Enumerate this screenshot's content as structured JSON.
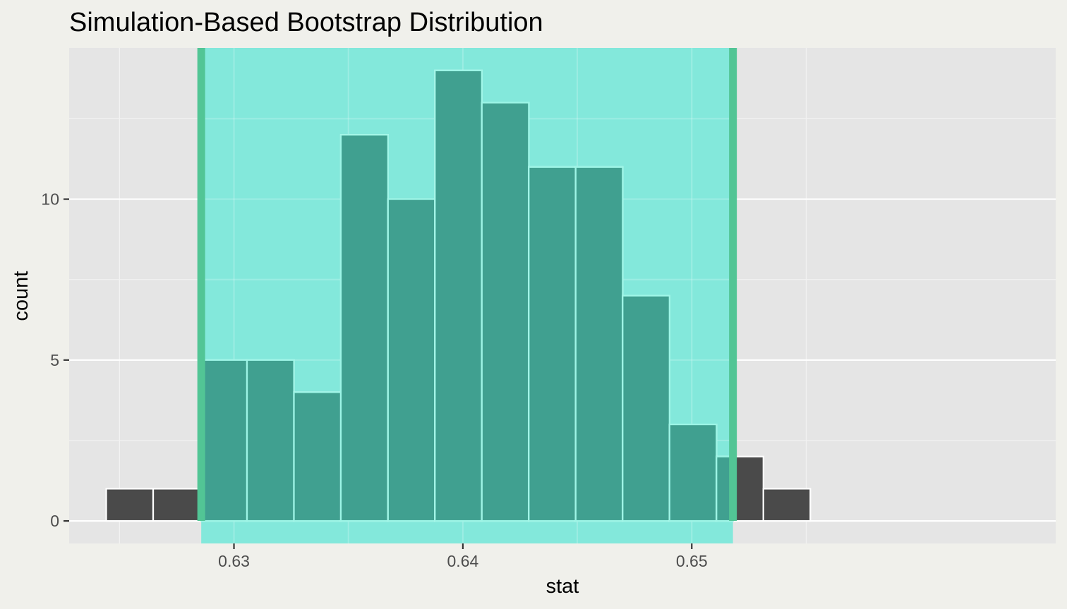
{
  "chart_data": {
    "type": "bar",
    "title": "Simulation-Based Bootstrap Distribution",
    "xlabel": "stat",
    "ylabel": "count",
    "xlim": [
      0.6228,
      0.6659
    ],
    "ylim": [
      -0.7,
      14.7
    ],
    "x_ticks": [
      {
        "value": 0.63,
        "label": "0.63"
      },
      {
        "value": 0.64,
        "label": "0.64"
      },
      {
        "value": 0.65,
        "label": "0.65"
      }
    ],
    "y_ticks": [
      {
        "value": 0,
        "label": "0"
      },
      {
        "value": 5,
        "label": "5"
      },
      {
        "value": 10,
        "label": "10"
      }
    ],
    "x_minor_breaks": [
      0.625,
      0.635,
      0.645,
      0.655
    ],
    "y_minor_breaks": [
      2.5,
      7.5,
      12.5
    ],
    "grid": true,
    "bin_width": 0.002051,
    "bins": [
      {
        "start": 0.62442,
        "end": 0.62647,
        "count": 1
      },
      {
        "start": 0.62647,
        "end": 0.62852,
        "count": 1
      },
      {
        "start": 0.62852,
        "end": 0.63057,
        "count": 5
      },
      {
        "start": 0.63057,
        "end": 0.63262,
        "count": 5
      },
      {
        "start": 0.63262,
        "end": 0.63467,
        "count": 4
      },
      {
        "start": 0.63467,
        "end": 0.63673,
        "count": 12
      },
      {
        "start": 0.63673,
        "end": 0.63878,
        "count": 10
      },
      {
        "start": 0.63878,
        "end": 0.64083,
        "count": 14
      },
      {
        "start": 0.64083,
        "end": 0.64288,
        "count": 13
      },
      {
        "start": 0.64288,
        "end": 0.64493,
        "count": 11
      },
      {
        "start": 0.64493,
        "end": 0.64698,
        "count": 11
      },
      {
        "start": 0.64698,
        "end": 0.64903,
        "count": 7
      },
      {
        "start": 0.64903,
        "end": 0.65108,
        "count": 3
      },
      {
        "start": 0.65108,
        "end": 0.65313,
        "count": 2
      },
      {
        "start": 0.65313,
        "end": 0.65518,
        "count": 1
      }
    ],
    "confidence_interval": {
      "lower": 0.62857,
      "upper": 0.6518
    },
    "colors": {
      "page_background": "#f0f0eb",
      "panel_background": "#e5e5e5",
      "grid_major": "#ffffff",
      "grid_minor": "#f2f2f2",
      "bar_outside": "#4a4a4a",
      "bar_inside": "#40a090",
      "bar_outline": "#ffffff",
      "bar_outline_inside": "#9df5e6",
      "shade_fill": "#7de8da",
      "endpoint_line": "#52c595"
    }
  }
}
